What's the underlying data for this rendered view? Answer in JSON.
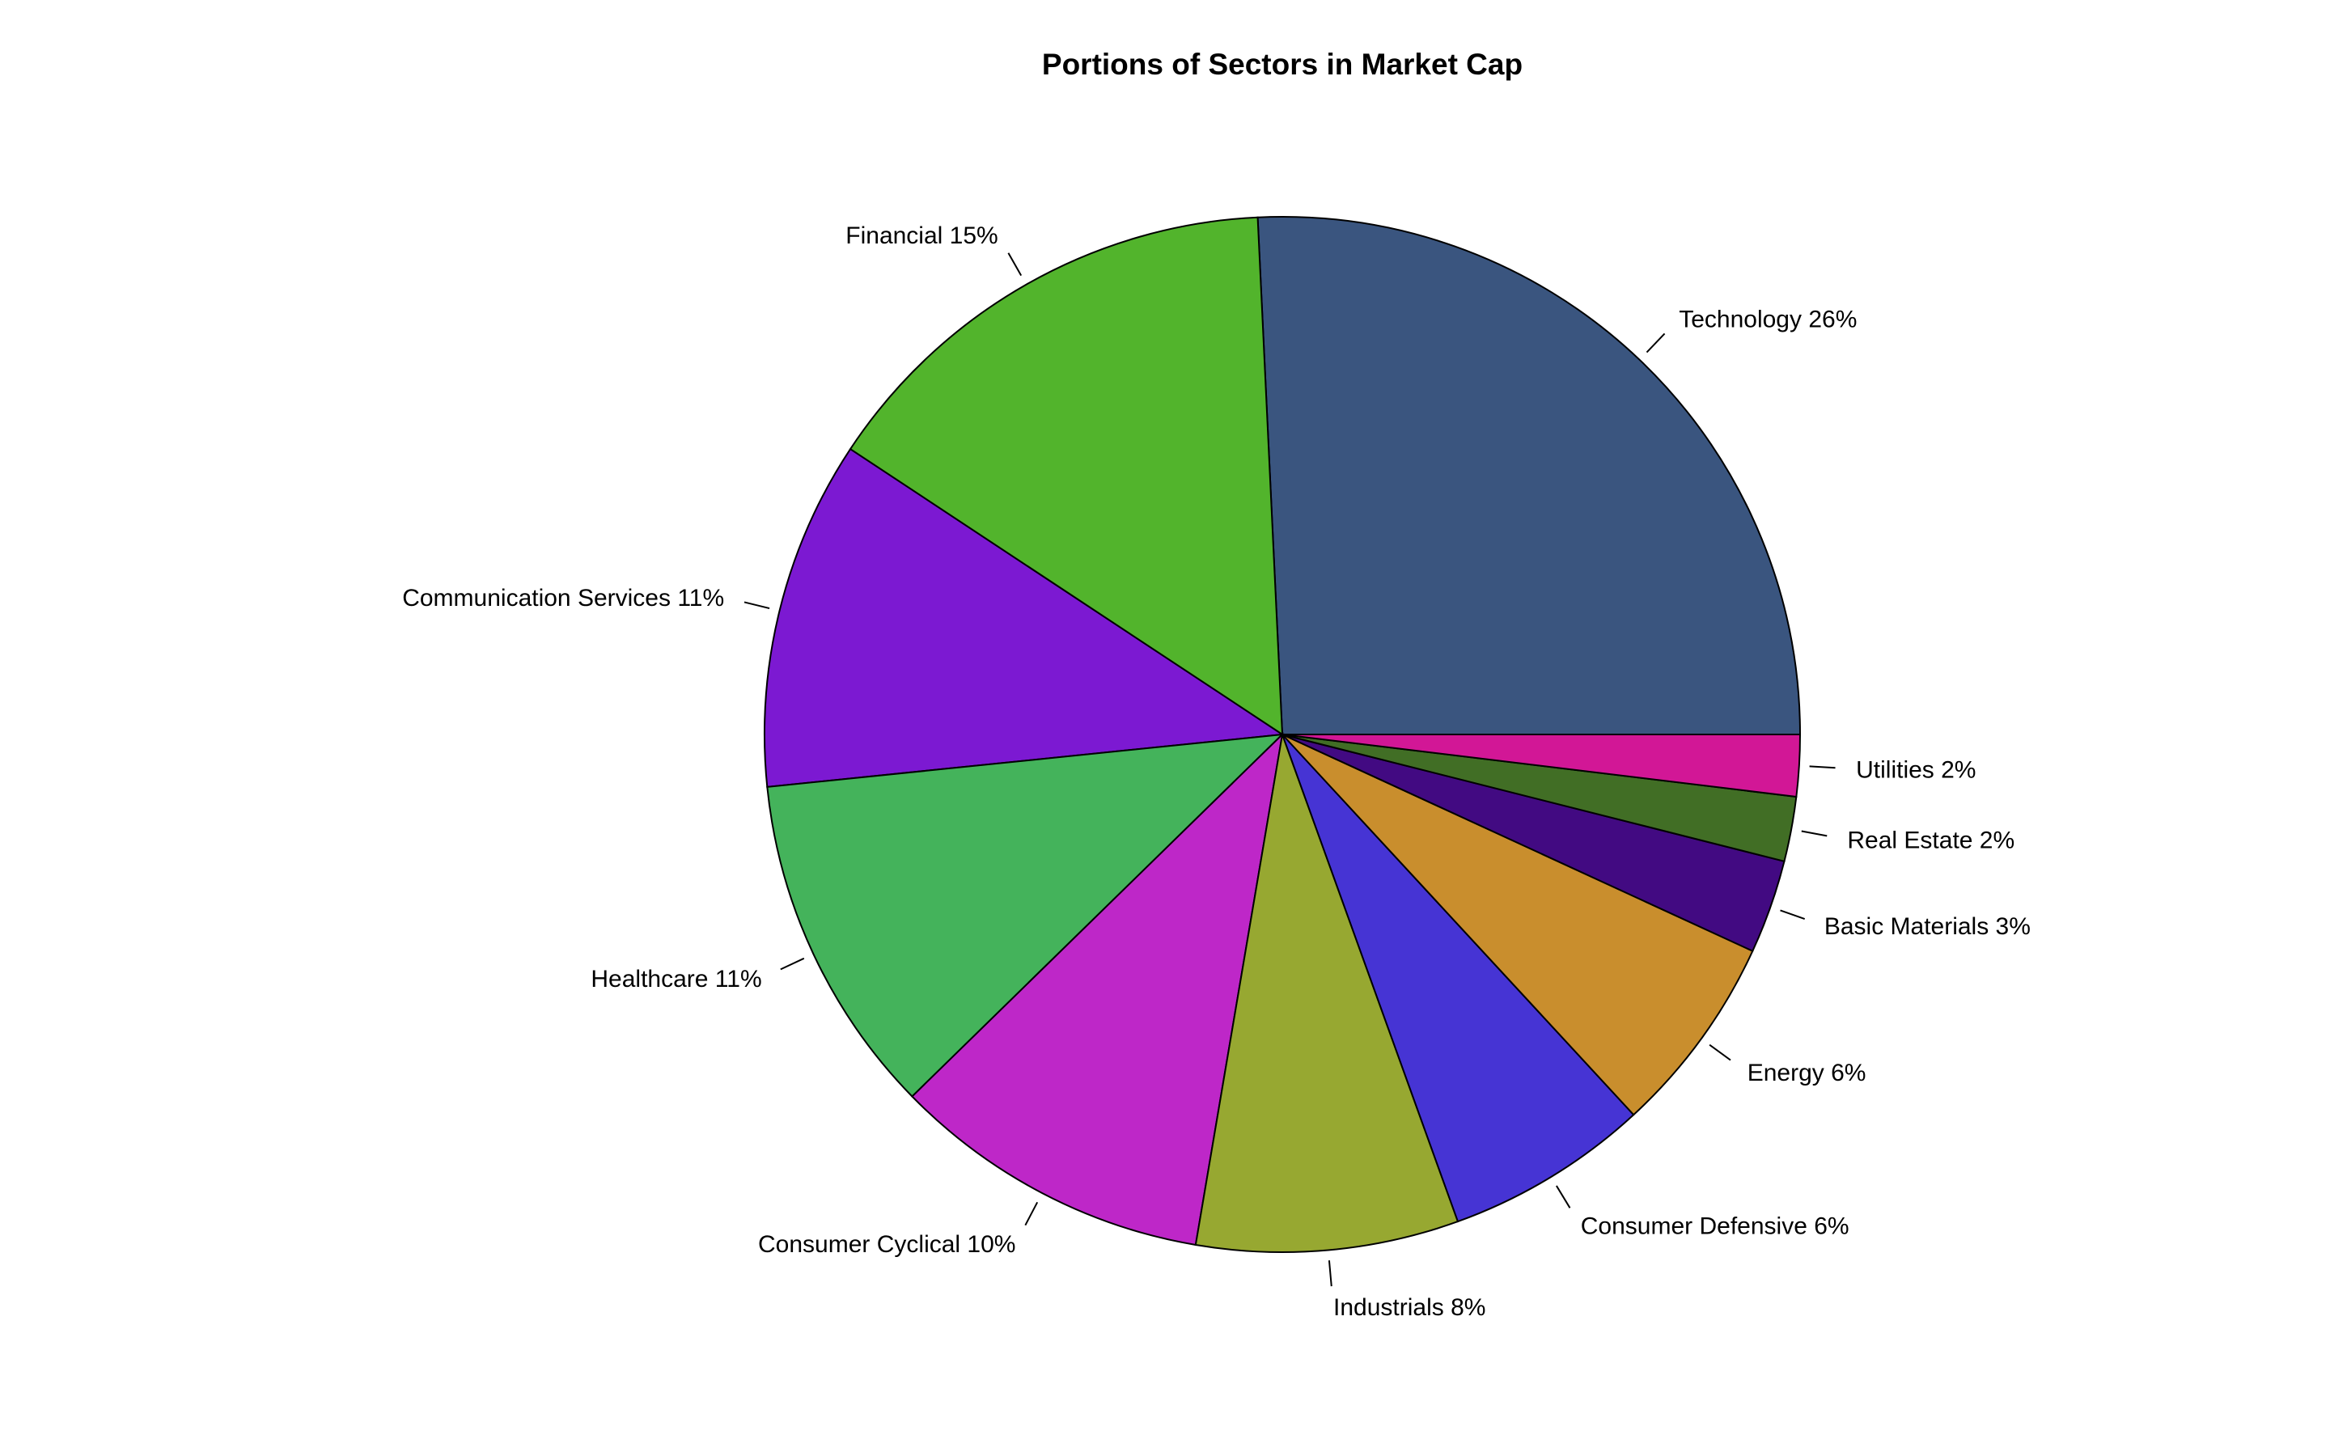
{
  "chart_data": {
    "type": "pie",
    "title": "Portions of Sectors in Market Cap",
    "slices": [
      {
        "label": "Technology 26%",
        "value": 25.5,
        "color": "#3A557F"
      },
      {
        "label": "Financial 15%",
        "value": 14.8,
        "color": "#52B42C"
      },
      {
        "label": "Communication Services 11%",
        "value": 10.8,
        "color": "#7C19D2"
      },
      {
        "label": "Healthcare 11%",
        "value": 10.6,
        "color": "#44B35B"
      },
      {
        "label": "Consumer Cyclical 10%",
        "value": 9.9,
        "color": "#BE27C8"
      },
      {
        "label": "Industrials 8%",
        "value": 8.1,
        "color": "#97A831"
      },
      {
        "label": "Consumer Defensive 6%",
        "value": 6.3,
        "color": "#4634D4"
      },
      {
        "label": "Energy 6%",
        "value": 6.2,
        "color": "#C98E2D"
      },
      {
        "label": "Basic Materials 3%",
        "value": 2.9,
        "color": "#420A82"
      },
      {
        "label": "Real Estate 2%",
        "value": 2.0,
        "color": "#416E25"
      },
      {
        "label": "Utilities 2%",
        "value": 1.9,
        "color": "#D21796"
      }
    ],
    "start_angle": "3 o'clock",
    "direction": "counterclockwise",
    "legend": "none"
  }
}
